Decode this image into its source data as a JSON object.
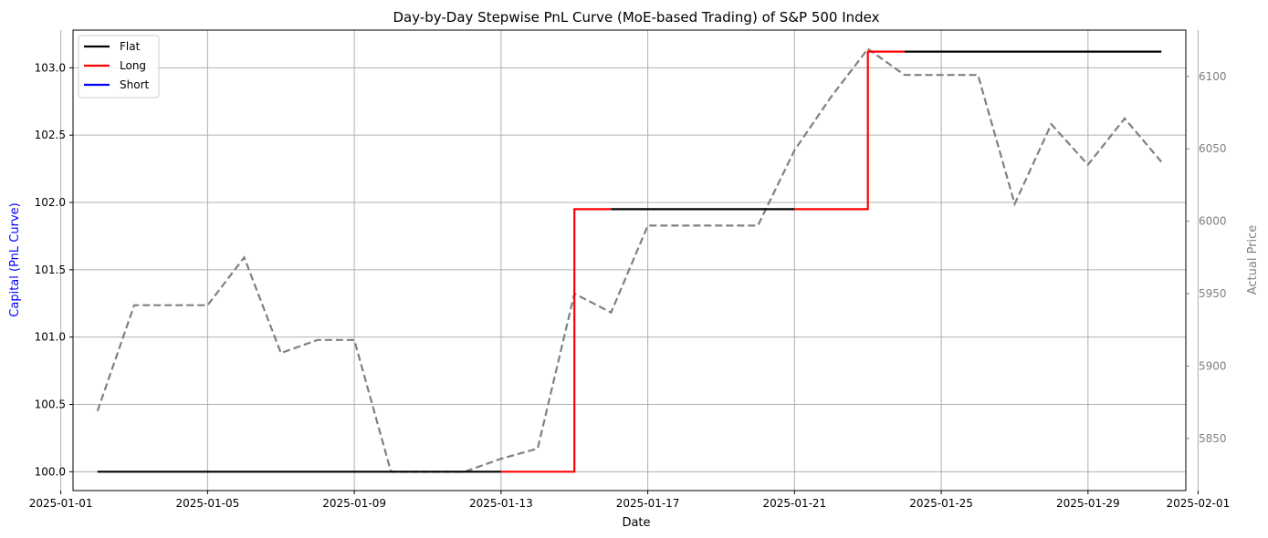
{
  "chart_data": {
    "type": "line",
    "title": "Day-by-Day Stepwise PnL Curve (MoE-based Trading) of S&P 500 Index",
    "xlabel": "Date",
    "ylabel_left": "Capital (PnL Curve)",
    "ylabel_right": "Actual Price",
    "x_ticks": [
      "2025-01-01",
      "2025-01-05",
      "2025-01-09",
      "2025-01-13",
      "2025-01-17",
      "2025-01-21",
      "2025-01-25",
      "2025-01-29",
      "2025-02-01"
    ],
    "y_left_ticks": [
      "100.0",
      "100.5",
      "101.0",
      "101.5",
      "102.0",
      "102.5",
      "103.0"
    ],
    "y_right_ticks": [
      "5850",
      "5900",
      "5950",
      "6000",
      "6050",
      "6100"
    ],
    "xlim": [
      "2025-01-01T08:00",
      "2025-01-31T16:00"
    ],
    "ylim_left": [
      99.86,
      103.28
    ],
    "ylim_right": [
      5814,
      6132
    ],
    "grid": true,
    "legend_position": "top-left",
    "legend": [
      {
        "label": "Flat",
        "color": "#000000"
      },
      {
        "label": "Long",
        "color": "#ff0000"
      },
      {
        "label": "Short",
        "color": "#0000ff"
      }
    ],
    "pnl_segments": [
      {
        "state": "Flat",
        "points": [
          [
            "2025-01-02",
            100.0
          ],
          [
            "2025-01-13",
            100.0
          ]
        ]
      },
      {
        "state": "Long",
        "points": [
          [
            "2025-01-13",
            100.0
          ],
          [
            "2025-01-15",
            100.0
          ],
          [
            "2025-01-15",
            101.95
          ],
          [
            "2025-01-16",
            101.95
          ]
        ]
      },
      {
        "state": "Flat",
        "points": [
          [
            "2025-01-16",
            101.95
          ],
          [
            "2025-01-21",
            101.95
          ]
        ]
      },
      {
        "state": "Long",
        "points": [
          [
            "2025-01-21",
            101.95
          ],
          [
            "2025-01-23",
            101.95
          ],
          [
            "2025-01-23",
            103.12
          ],
          [
            "2025-01-24",
            103.12
          ]
        ]
      },
      {
        "state": "Flat",
        "points": [
          [
            "2025-01-24",
            103.12
          ],
          [
            "2025-01-31",
            103.12
          ]
        ]
      }
    ],
    "price_series": {
      "color": "#808080",
      "style": "dashed",
      "points": [
        [
          "2025-01-02",
          5869
        ],
        [
          "2025-01-03",
          5942
        ],
        [
          "2025-01-04",
          5942
        ],
        [
          "2025-01-05",
          5942
        ],
        [
          "2025-01-06",
          5975
        ],
        [
          "2025-01-07",
          5909
        ],
        [
          "2025-01-08",
          5918
        ],
        [
          "2025-01-09",
          5918
        ],
        [
          "2025-01-10",
          5827
        ],
        [
          "2025-01-11",
          5827
        ],
        [
          "2025-01-12",
          5827
        ],
        [
          "2025-01-13",
          5836
        ],
        [
          "2025-01-14",
          5843
        ],
        [
          "2025-01-15",
          5950
        ],
        [
          "2025-01-16",
          5937
        ],
        [
          "2025-01-17",
          5997
        ],
        [
          "2025-01-18",
          5997
        ],
        [
          "2025-01-19",
          5997
        ],
        [
          "2025-01-20",
          5997
        ],
        [
          "2025-01-21",
          6049
        ],
        [
          "2025-01-22",
          6086
        ],
        [
          "2025-01-23",
          6119
        ],
        [
          "2025-01-24",
          6101
        ],
        [
          "2025-01-25",
          6101
        ],
        [
          "2025-01-26",
          6101
        ],
        [
          "2025-01-27",
          6012
        ],
        [
          "2025-01-28",
          6067
        ],
        [
          "2025-01-29",
          6039
        ],
        [
          "2025-01-30",
          6071
        ],
        [
          "2025-01-31",
          6041
        ]
      ]
    }
  }
}
